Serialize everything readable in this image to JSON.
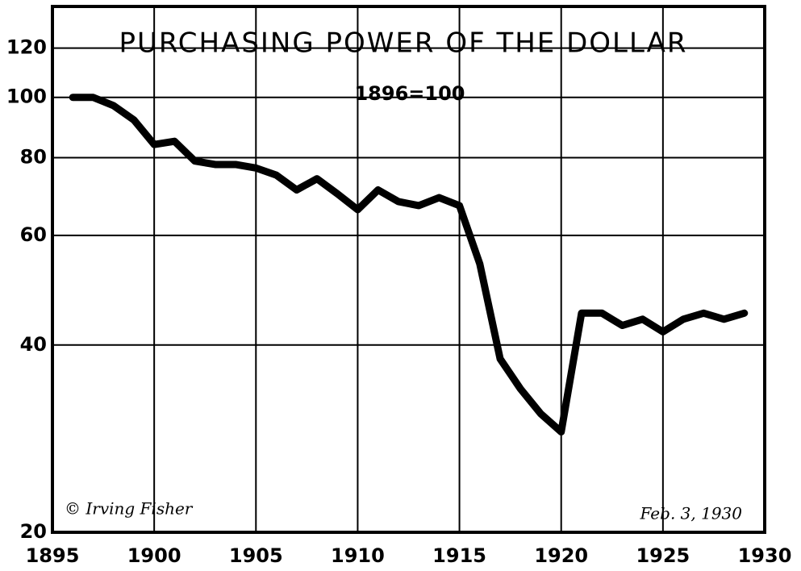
{
  "chart_data": {
    "type": "line",
    "title": "PURCHASING POWER OF THE DOLLAR",
    "subtitle": "1896=100",
    "annotations": [
      "© Irving Fisher",
      "Feb. 3, 1930"
    ],
    "x": [
      1896,
      1897,
      1898,
      1899,
      1900,
      1901,
      1902,
      1903,
      1904,
      1905,
      1906,
      1907,
      1908,
      1909,
      1910,
      1911,
      1912,
      1913,
      1914,
      1915,
      1916,
      1917,
      1918,
      1919,
      1920,
      1921,
      1922,
      1923,
      1924,
      1925,
      1926,
      1927,
      1928,
      1929
    ],
    "series": [
      {
        "name": "Purchasing power",
        "color": "#000000",
        "values": [
          100,
          100,
          97,
          92,
          84,
          85,
          79,
          78,
          78,
          77,
          75,
          71,
          74,
          70,
          66,
          71,
          68,
          67,
          69,
          67,
          54,
          38,
          34,
          31,
          29,
          45,
          45,
          43,
          44,
          42,
          44,
          45,
          44,
          45
        ]
      }
    ],
    "xlim": [
      1895,
      1930
    ],
    "xticks": [
      1895,
      1900,
      1905,
      1910,
      1915,
      1920,
      1925,
      1930
    ],
    "ylim": [
      20,
      140
    ],
    "yticks": [
      20,
      40,
      60,
      80,
      100,
      120
    ],
    "log_y": true,
    "grid": true
  }
}
